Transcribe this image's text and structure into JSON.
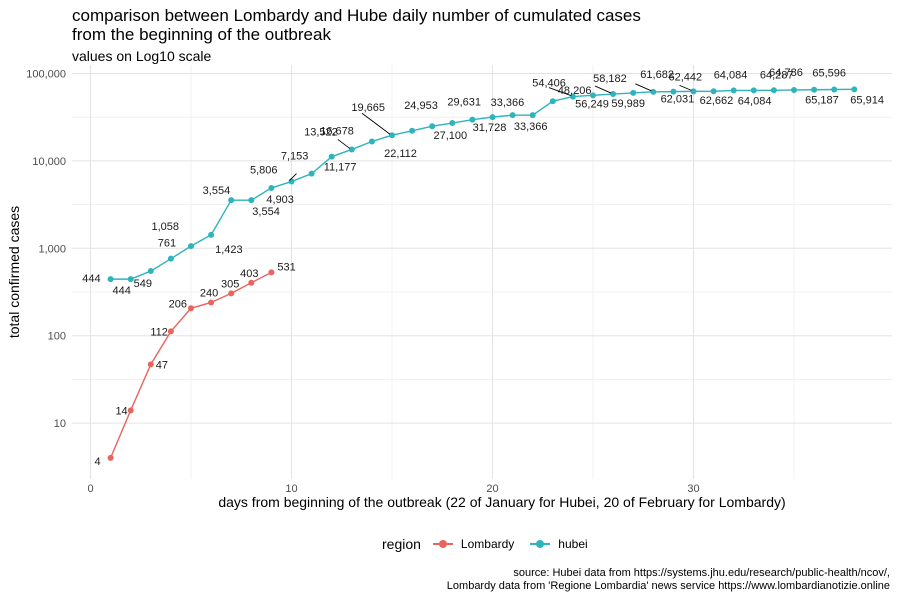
{
  "title": "comparison between Lombardy and Hube daily number of cumulated cases\nfrom the beginning of the outbreak",
  "subtitle": "values on Log10 scale",
  "caption": {
    "line1": "source: Hubei data from https://systems.jhu.edu/research/public-health/ncov/,",
    "line2": "Lombardy data from 'Regione Lombardia' news service https://www.lombardianotizie.online"
  },
  "legend": {
    "title": "region",
    "items": [
      {
        "label": "Lombardy",
        "color": "#e8645c"
      },
      {
        "label": "hubei",
        "color": "#2eb4bc"
      }
    ]
  },
  "chart_data": {
    "type": "line",
    "xlabel": "days from beginning of the outbreak (22 of January for Hubei, 20 of February for Lombardy)",
    "ylabel": "total confirmed cases",
    "y_scale": "log10",
    "xlim": [
      -0.5,
      39
    ],
    "ylim": [
      2.5,
      100000
    ],
    "x_ticks": [
      0,
      10,
      20,
      30
    ],
    "x_tick_labels": [
      "0",
      "10",
      "20",
      "30"
    ],
    "y_ticks": [
      10,
      100,
      1000,
      10000,
      100000
    ],
    "y_tick_labels": [
      "10",
      "100",
      "1,000",
      "10,000",
      "100,000"
    ],
    "grid": true,
    "legend_position": "bottom",
    "series": [
      {
        "name": "Lombardy",
        "color": "#e8645c",
        "x": [
          1,
          2,
          3,
          4,
          5,
          6,
          7,
          8,
          9
        ],
        "values": [
          4,
          14,
          47,
          112,
          206,
          240,
          305,
          403,
          531
        ],
        "labels": [
          "4",
          "14",
          "47",
          "112",
          "206",
          "240",
          "305",
          "403",
          "531"
        ]
      },
      {
        "name": "hubei",
        "color": "#2eb4bc",
        "x": [
          1,
          2,
          3,
          4,
          5,
          6,
          7,
          8,
          9,
          10,
          11,
          12,
          13,
          14,
          15,
          16,
          17,
          18,
          19,
          20,
          21,
          22,
          23,
          24,
          25,
          26,
          27,
          28,
          29,
          30,
          31,
          32,
          33,
          34,
          35,
          36,
          37,
          38
        ],
        "values": [
          444,
          444,
          549,
          761,
          1058,
          1423,
          3554,
          3554,
          4903,
          5806,
          7153,
          11177,
          13522,
          16678,
          19665,
          22112,
          24953,
          27100,
          29631,
          31728,
          33366,
          33366,
          48206,
          54406,
          56249,
          58182,
          59989,
          61682,
          62031,
          62442,
          62662,
          64084,
          64084,
          64287,
          64786,
          65187,
          65596,
          65914
        ],
        "labels": [
          "444",
          "444",
          "549",
          "761",
          "1,058",
          "1,423",
          "3,554",
          "3,554",
          "4,903",
          "5,806",
          "7,153",
          "11,177",
          "13,522",
          "16,678",
          "19,665",
          "22,112",
          "24,953",
          "27,100",
          "29,631",
          "31,728",
          "33,366",
          "33,366",
          "48,206",
          "54,406",
          "56,249",
          "58,182",
          "59,989",
          "61,682",
          "62,031",
          "62,442",
          "62,662",
          "64,084",
          "64,084",
          "64,287",
          "64,786",
          "65,187",
          "65,596",
          "65,914"
        ]
      }
    ]
  }
}
